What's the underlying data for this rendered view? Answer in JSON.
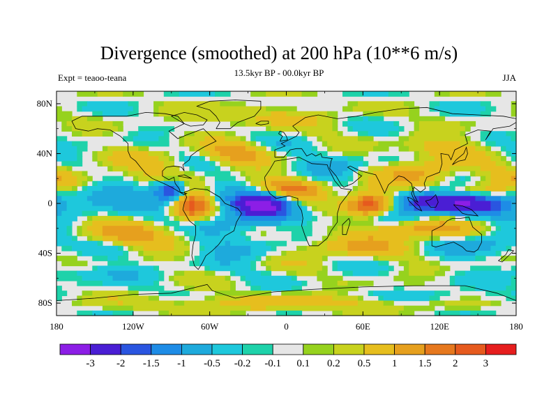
{
  "title": "Divergence (smoothed) at 200 hPa (10**6 m/s)",
  "subtitle": "13.5kyr BP - 00.0kyr BP",
  "left_label": "Expt = teaoo-teana",
  "right_label": "JJA",
  "lat_ticks": [
    "80N",
    "40N",
    "0",
    "40S",
    "80S"
  ],
  "lon_ticks": [
    "180",
    "120W",
    "60W",
    "0",
    "60E",
    "120E",
    "180"
  ],
  "colorbar": {
    "colors": [
      "#8c1ee6",
      "#4a1ed4",
      "#2a55e0",
      "#1e8ce6",
      "#1eaadc",
      "#1ec8dc",
      "#1ed2aa",
      "#e6e6e6",
      "#96d21e",
      "#c8d21e",
      "#e6be1e",
      "#e6a01e",
      "#e6781e",
      "#e65a1e",
      "#e61e1e"
    ],
    "labels": [
      "-3",
      "-2",
      "-1.5",
      "-1",
      "-0.5",
      "-0.2",
      "-0.1",
      "0.1",
      "0.2",
      "0.5",
      "1",
      "1.5",
      "2",
      "3"
    ]
  },
  "chart_data": {
    "type": "heatmap",
    "title": "Divergence (smoothed) at 200 hPa (10**6 m/s)",
    "subtitle": "13.5kyr BP - 00.0kyr BP",
    "experiment": "Expt = teaoo-teana",
    "season": "JJA",
    "xlim": [
      -180,
      180
    ],
    "ylim": [
      -90,
      90
    ],
    "levels": [
      -3,
      -2,
      -1.5,
      -1,
      -0.5,
      -0.2,
      -0.1,
      0.1,
      0.2,
      0.5,
      1,
      1.5,
      2,
      3
    ],
    "features": [
      {
        "lon": -20,
        "lat": 0,
        "amp": -3.4,
        "sx": 16,
        "sy": 7
      },
      {
        "lon": 135,
        "lat": 0,
        "amp": -3.0,
        "sx": 22,
        "sy": 6
      },
      {
        "lon": 105,
        "lat": 2,
        "amp": -1.6,
        "sx": 12,
        "sy": 6
      },
      {
        "lon": -90,
        "lat": 10,
        "amp": -2.2,
        "sx": 10,
        "sy": 6
      },
      {
        "lon": -45,
        "lat": -15,
        "amp": -1.0,
        "sx": 18,
        "sy": 8
      },
      {
        "lon": -150,
        "lat": 5,
        "amp": -1.1,
        "sx": 25,
        "sy": 8
      },
      {
        "lon": 70,
        "lat": -12,
        "amp": -1.0,
        "sx": 25,
        "sy": 5
      },
      {
        "lon": 160,
        "lat": -30,
        "amp": -0.9,
        "sx": 20,
        "sy": 8
      },
      {
        "lon": -75,
        "lat": 0,
        "amp": 1.9,
        "sx": 10,
        "sy": 9
      },
      {
        "lon": 0,
        "lat": 12,
        "amp": 1.4,
        "sx": 22,
        "sy": 6
      },
      {
        "lon": 65,
        "lat": 0,
        "amp": 2.6,
        "sx": 12,
        "sy": 8
      },
      {
        "lon": 110,
        "lat": 25,
        "amp": 1.3,
        "sx": 18,
        "sy": 7
      },
      {
        "lon": 100,
        "lat": -20,
        "amp": 1.6,
        "sx": 25,
        "sy": 6
      },
      {
        "lon": -160,
        "lat": 20,
        "amp": 0.9,
        "sx": 28,
        "sy": 6
      },
      {
        "lon": -40,
        "lat": 40,
        "amp": 1.1,
        "sx": 18,
        "sy": 6
      },
      {
        "lon": -120,
        "lat": -25,
        "amp": 0.9,
        "sx": 40,
        "sy": 7
      },
      {
        "lon": 40,
        "lat": -35,
        "amp": 1.0,
        "sx": 30,
        "sy": 6
      },
      {
        "lon": -30,
        "lat": -35,
        "amp": -0.7,
        "sx": 25,
        "sy": 7
      },
      {
        "lon": 40,
        "lat": 30,
        "amp": -0.6,
        "sx": 20,
        "sy": 6
      },
      {
        "lon": -100,
        "lat": 35,
        "amp": 0.6,
        "sx": 20,
        "sy": 6
      },
      {
        "lon": 120,
        "lat": 45,
        "amp": 0.7,
        "sx": 25,
        "sy": 6
      },
      {
        "lon": -20,
        "lat": 70,
        "amp": 0.6,
        "sx": 40,
        "sy": 6
      },
      {
        "lon": 0,
        "lat": -80,
        "amp": 0.8,
        "sx": 80,
        "sy": 4
      },
      {
        "lon": 120,
        "lat": -75,
        "amp": -0.5,
        "sx": 30,
        "sy": 4
      },
      {
        "lon": -150,
        "lat": -55,
        "amp": -0.5,
        "sx": 30,
        "sy": 5
      },
      {
        "lon": 150,
        "lat": 10,
        "amp": 1.0,
        "sx": 15,
        "sy": 4
      }
    ]
  }
}
